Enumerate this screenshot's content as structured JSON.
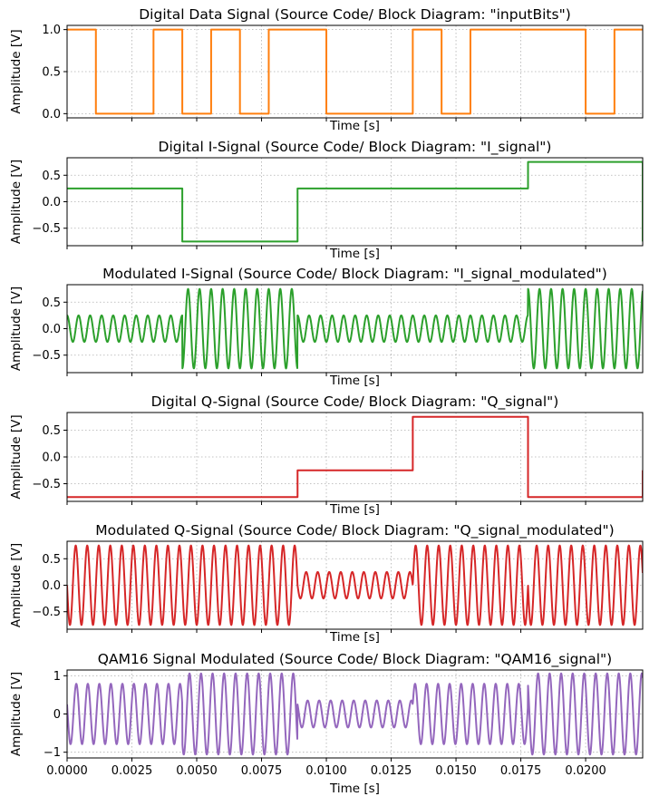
{
  "chart_data": [
    {
      "type": "line",
      "title": "Digital Data Signal (Source Code/ Block Diagram: \"inputBits\")",
      "xlabel": "Time [s]",
      "ylabel": "Amplitude [V]",
      "color": "#ff7f0e",
      "xlim": [
        0,
        0.0222
      ],
      "ylim": [
        -0.05,
        1.05
      ],
      "yticks": [
        "0.0",
        "0.5",
        "1.0"
      ],
      "grid": true,
      "series": [
        {
          "kind": "step",
          "x": [
            0,
            0.001111,
            0.003333,
            0.004444,
            0.005556,
            0.006667,
            0.007778,
            0.01,
            0.013333,
            0.014444,
            0.015556,
            0.02,
            0.021111,
            0.0222
          ],
          "values": [
            1,
            0,
            1,
            0,
            1,
            0,
            1,
            0,
            1,
            0,
            1,
            0,
            1,
            1
          ]
        }
      ]
    },
    {
      "type": "line",
      "title": "Digital I-Signal (Source Code/ Block Diagram: \"I_signal\")",
      "xlabel": "Time [s]",
      "ylabel": "Amplitude [V]",
      "color": "#2ca02c",
      "xlim": [
        0,
        0.0222
      ],
      "ylim": [
        -0.83,
        0.83
      ],
      "yticks": [
        "−0.5",
        "0.0",
        "0.5"
      ],
      "grid": true,
      "series": [
        {
          "kind": "step",
          "x": [
            0,
            0.004444,
            0.008889,
            0.017778,
            0.0222
          ],
          "values": [
            0.25,
            -0.75,
            0.25,
            0.75,
            -0.75
          ]
        }
      ]
    },
    {
      "type": "line",
      "title": "Modulated I-Signal (Source Code/ Block Diagram: \"I_signal_modulated\")",
      "xlabel": "Time [s]",
      "ylabel": "Amplitude [V]",
      "color": "#2ca02c",
      "xlim": [
        0,
        0.0222
      ],
      "ylim": [
        -0.83,
        0.83
      ],
      "yticks": [
        "−0.5",
        "0.0",
        "0.5"
      ],
      "grid": true,
      "series": [
        {
          "kind": "modulated",
          "wave": "cos",
          "carrier_hz": 2250,
          "x": [
            0,
            0.004444,
            0.008889,
            0.017778,
            0.0222
          ],
          "amplitudes": [
            0.25,
            -0.75,
            0.25,
            0.75
          ]
        }
      ]
    },
    {
      "type": "line",
      "title": "Digital Q-Signal (Source Code/ Block Diagram: \"Q_signal\")",
      "xlabel": "Time [s]",
      "ylabel": "Amplitude [V]",
      "color": "#d62728",
      "xlim": [
        0,
        0.0222
      ],
      "ylim": [
        -0.83,
        0.83
      ],
      "yticks": [
        "−0.5",
        "0.0",
        "0.5"
      ],
      "grid": true,
      "series": [
        {
          "kind": "step",
          "x": [
            0,
            0.008889,
            0.013333,
            0.017778,
            0.0222
          ],
          "values": [
            -0.75,
            -0.25,
            0.75,
            -0.75,
            -0.25
          ]
        }
      ]
    },
    {
      "type": "line",
      "title": "Modulated Q-Signal (Source Code/ Block Diagram: \"Q_signal_modulated\")",
      "xlabel": "Time [s]",
      "ylabel": "Amplitude [V]",
      "color": "#d62728",
      "xlim": [
        0,
        0.0222
      ],
      "ylim": [
        -0.83,
        0.83
      ],
      "yticks": [
        "−0.5",
        "0.0",
        "0.5"
      ],
      "grid": true,
      "series": [
        {
          "kind": "modulated",
          "wave": "sin",
          "carrier_hz": 2250,
          "x": [
            0,
            0.008889,
            0.013333,
            0.017778,
            0.0222
          ],
          "amplitudes": [
            -0.75,
            -0.25,
            0.75,
            -0.75
          ]
        }
      ]
    },
    {
      "type": "line",
      "title": "QAM16 Signal Modulated (Source Code/ Block Diagram: \"QAM16_signal\")",
      "xlabel": "Time [s]",
      "ylabel": "Amplitude [V]",
      "color": "#9467bd",
      "xlim": [
        0,
        0.0222
      ],
      "ylim": [
        -1.15,
        1.15
      ],
      "yticks": [
        "−1",
        "0",
        "1"
      ],
      "xticks": [
        "0.0000",
        "0.0025",
        "0.0050",
        "0.0075",
        "0.0100",
        "0.0125",
        "0.0150",
        "0.0175",
        "0.0200"
      ],
      "grid": true,
      "series": [
        {
          "kind": "sum",
          "carrier_hz": 2250,
          "x": [
            0,
            0.004444,
            0.008889,
            0.013333,
            0.017778,
            0.0222
          ],
          "i_amplitudes": [
            0.25,
            -0.75,
            0.25,
            0.25,
            0.75
          ],
          "q_amplitudes": [
            -0.75,
            -0.75,
            -0.25,
            0.75,
            -0.75
          ]
        }
      ]
    }
  ]
}
